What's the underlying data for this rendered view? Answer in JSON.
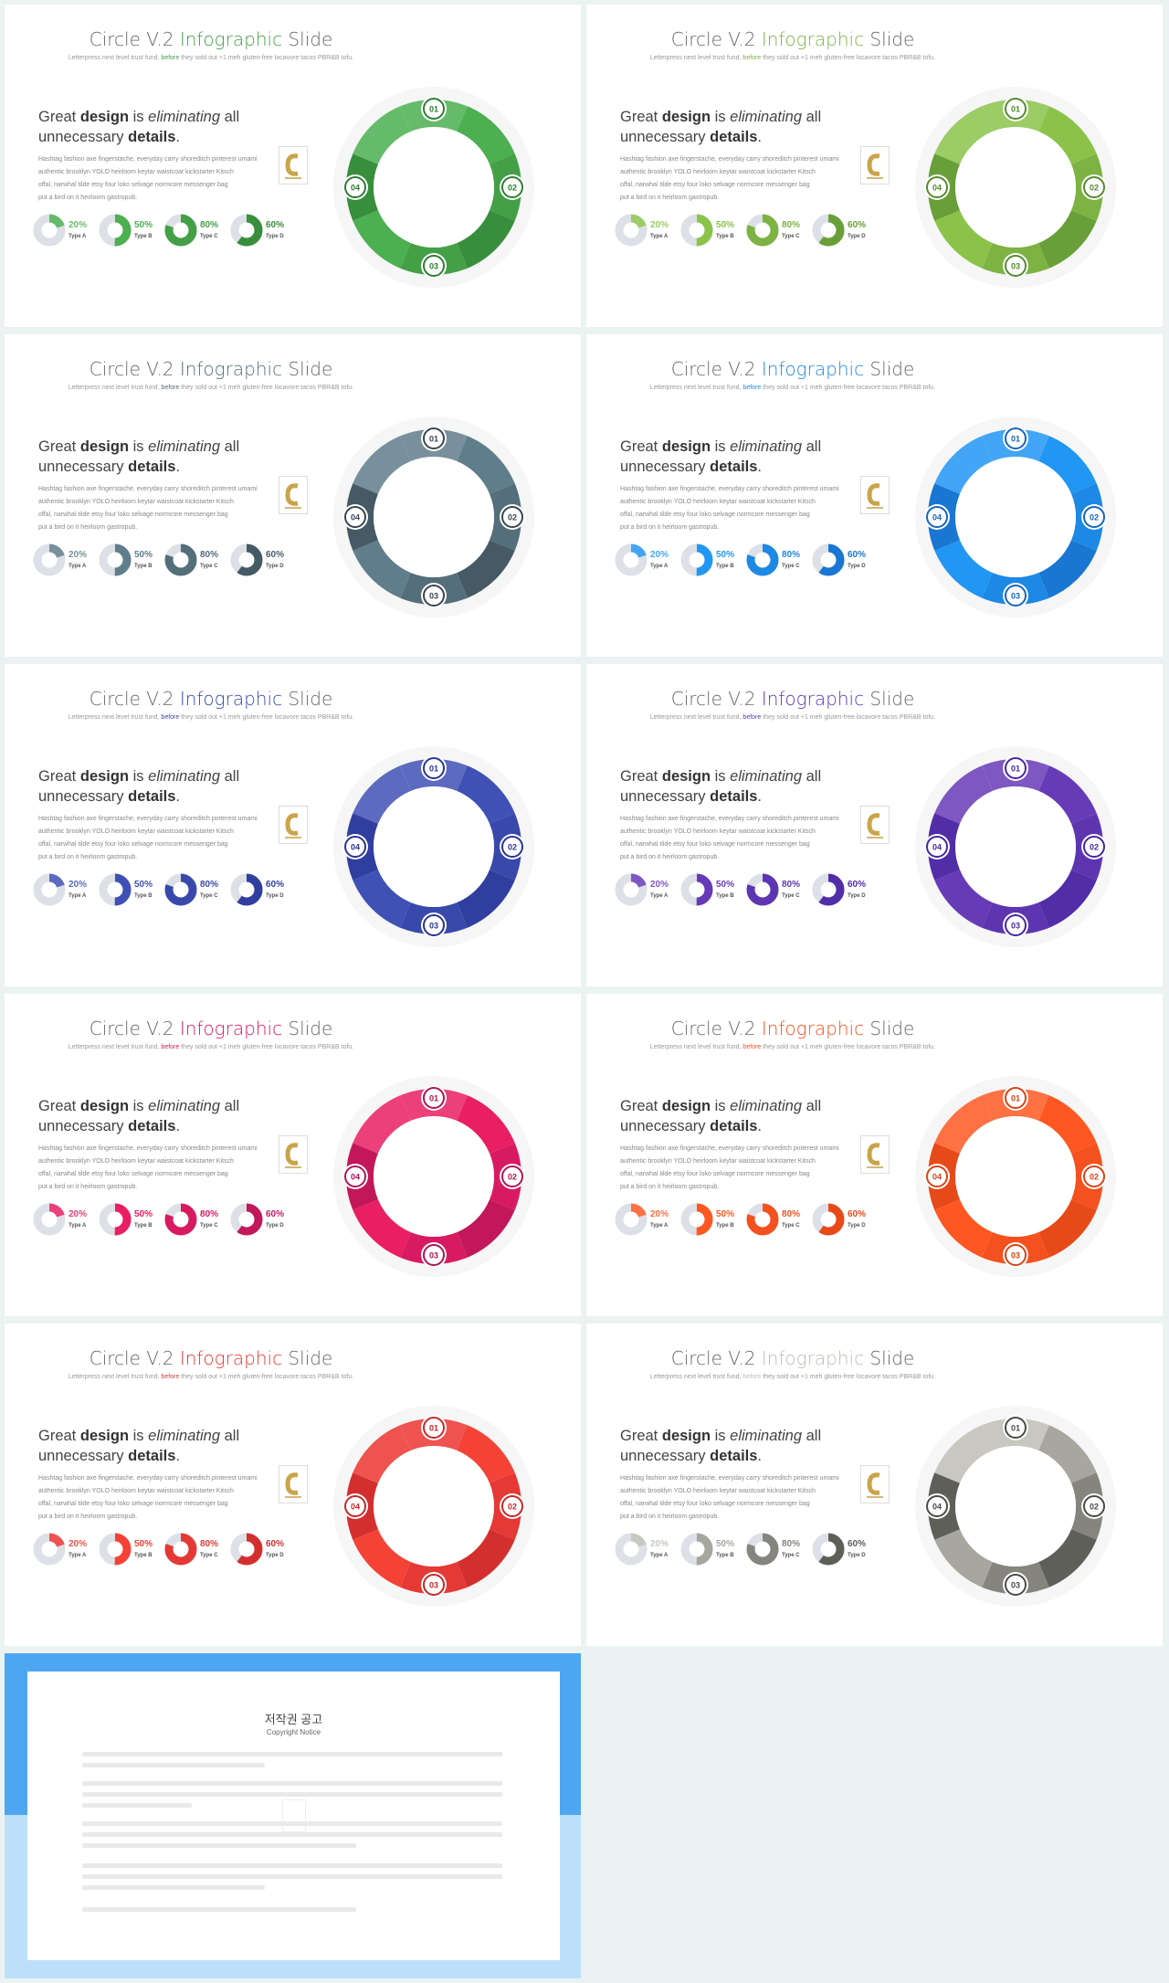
{
  "common": {
    "title_prefix": "Circle V.2 ",
    "title_highlight": "Infographic",
    "title_suffix": " Slide",
    "subtitle_a": "Letterpress next level trust fund, ",
    "subtitle_before": "before",
    "subtitle_b": " they sold out +1 meh gluten-free locavore tacos PBR&B tofu.",
    "headline_1": "Great ",
    "headline_2": "design",
    "headline_3": " is ",
    "headline_4": "eliminating",
    "headline_5": " all",
    "headline_6": "unnecessary ",
    "headline_7": "details",
    "headline_8": ".",
    "para_1": "Hashtag fashion axe fingerstache, everyday carry shoreditch pinterest umami",
    "para_2": "authentic brooklyn YOLO heirloom keytar waistcoat kickstarter Kitsch",
    "para_3": "offal, narwhal tilde etsy four loko selvage normcore messenger bag",
    "para_4": "put a bird on it heirloom gastropub.",
    "markers": [
      "01",
      "02",
      "03",
      "04"
    ]
  },
  "stats": [
    {
      "value": 20,
      "label": "20%",
      "type": "Type A"
    },
    {
      "value": 50,
      "label": "50%",
      "type": "Type B"
    },
    {
      "value": 80,
      "label": "80%",
      "type": "Type C"
    },
    {
      "value": 60,
      "label": "60%",
      "type": "Type D"
    }
  ],
  "themes": [
    {
      "name": "green",
      "accent": "#43a047",
      "c1": "#66bb6a",
      "c2": "#4caf50",
      "c3": "#43a047",
      "c4": "#388e3c",
      "dark": "#2e7d32"
    },
    {
      "name": "light-green",
      "accent": "#7cb342",
      "c1": "#9ccc65",
      "c2": "#8bc34a",
      "c3": "#7cb342",
      "c4": "#689f38",
      "dark": "#558b2f"
    },
    {
      "name": "blue-grey",
      "accent": "#546e7a",
      "c1": "#78909c",
      "c2": "#607d8b",
      "c3": "#546e7a",
      "c4": "#455a64",
      "dark": "#37474f"
    },
    {
      "name": "blue",
      "accent": "#1e88e5",
      "c1": "#42a5f5",
      "c2": "#2196f3",
      "c3": "#1e88e5",
      "c4": "#1976d2",
      "dark": "#1565c0"
    },
    {
      "name": "indigo",
      "accent": "#3949ab",
      "c1": "#5c6bc0",
      "c2": "#3f51b5",
      "c3": "#3949ab",
      "c4": "#303f9f",
      "dark": "#283593"
    },
    {
      "name": "purple",
      "accent": "#5e35b1",
      "c1": "#7e57c2",
      "c2": "#673ab7",
      "c3": "#5e35b1",
      "c4": "#512da8",
      "dark": "#4527a0"
    },
    {
      "name": "pink",
      "accent": "#d81b60",
      "c1": "#ec407a",
      "c2": "#e91e63",
      "c3": "#d81b60",
      "c4": "#c2185b",
      "dark": "#ad1457"
    },
    {
      "name": "orange",
      "accent": "#f4511e",
      "c1": "#ff7043",
      "c2": "#ff5722",
      "c3": "#f4511e",
      "c4": "#e64a19",
      "dark": "#d84315"
    },
    {
      "name": "red",
      "accent": "#e53935",
      "c1": "#ef5350",
      "c2": "#f44336",
      "c3": "#e53935",
      "c4": "#d32f2f",
      "dark": "#c62828"
    },
    {
      "name": "grey",
      "accent": "#bdbdb5",
      "c1": "#c8c8c0",
      "c2": "#a7a79f",
      "c3": "#85857e",
      "c4": "#5f5f5a",
      "dark": "#4a4a46"
    }
  ],
  "copyright": {
    "title": "저작권 공고",
    "subtitle": "Copyright Notice"
  }
}
